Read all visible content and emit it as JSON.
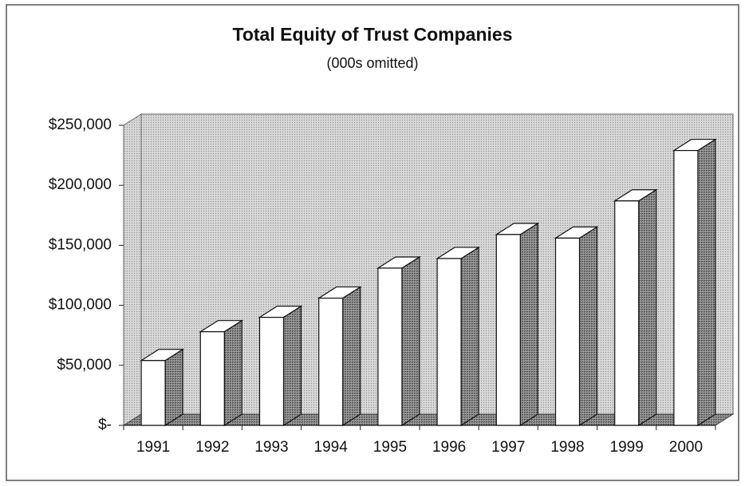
{
  "chart_data": {
    "type": "bar3d",
    "title": "Total Equity of Trust Companies",
    "subtitle": "(000s omitted)",
    "categories": [
      "1991",
      "1992",
      "1993",
      "1994",
      "1995",
      "1996",
      "1997",
      "1998",
      "1999",
      "2000"
    ],
    "values": [
      54000,
      78000,
      90000,
      106000,
      131000,
      139000,
      159000,
      156000,
      187000,
      229000
    ],
    "color": "#ffffff",
    "ylim": [
      0,
      250000
    ],
    "yticks": [
      {
        "value": 0,
        "label": "$-"
      },
      {
        "value": 50000,
        "label": "$50,000"
      },
      {
        "value": 100000,
        "label": "$100,000"
      },
      {
        "value": 150000,
        "label": "$150,000"
      },
      {
        "value": 200000,
        "label": "$200,000"
      },
      {
        "value": 250000,
        "label": "$250,000"
      }
    ],
    "grid": false
  }
}
